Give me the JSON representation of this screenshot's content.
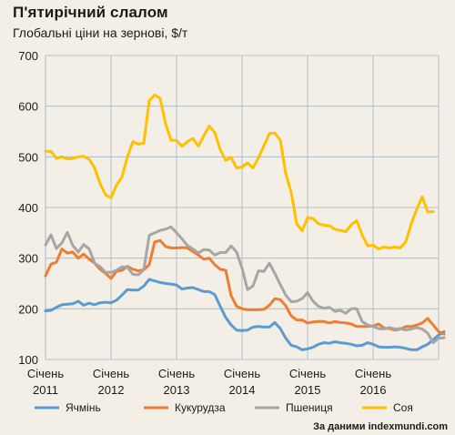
{
  "title": "П'ятирічний слалом",
  "subtitle": "Глобальні ціни на зернові, $/т",
  "source": "За даними indexmundi.com",
  "chart_data": {
    "type": "line",
    "xlabel": "",
    "ylabel": "",
    "ylim": [
      100,
      700
    ],
    "yticks": [
      "100",
      "200",
      "300",
      "400",
      "500",
      "600",
      "700"
    ],
    "xticks": [
      {
        "label": "Січень",
        "year": "2011",
        "x": 0
      },
      {
        "label": "Січень",
        "year": "2012",
        "x": 12
      },
      {
        "label": "Січень",
        "year": "2013",
        "x": 24
      },
      {
        "label": "Січень",
        "year": "2014",
        "x": 36
      },
      {
        "label": "Січень",
        "year": "2015",
        "x": 48
      },
      {
        "label": "Січень",
        "year": "2016",
        "x": 60
      }
    ],
    "grid": true,
    "legend_position": "bottom",
    "series": [
      {
        "name": "Ячмінь",
        "color": "#5b9bd5",
        "values": [
          196,
          197,
          203,
          208,
          209,
          210,
          215,
          207,
          211,
          208,
          212,
          213,
          212,
          217,
          227,
          238,
          237,
          237,
          245,
          258,
          255,
          252,
          250,
          249,
          247,
          239,
          241,
          242,
          238,
          234,
          234,
          228,
          205,
          183,
          168,
          158,
          157,
          158,
          164,
          165,
          164,
          164,
          173,
          161,
          142,
          128,
          125,
          119,
          121,
          124,
          130,
          133,
          132,
          135,
          133,
          132,
          130,
          127,
          128,
          133,
          130,
          125,
          124,
          124,
          125,
          124,
          122,
          119,
          119,
          125,
          130,
          139,
          148,
          155
        ]
      },
      {
        "name": "Кукурудза",
        "color": "#ed7d31",
        "values": [
          265,
          288,
          292,
          318,
          310,
          312,
          300,
          308,
          298,
          290,
          278,
          270,
          260,
          274,
          276,
          284,
          278,
          275,
          277,
          287,
          332,
          335,
          323,
          320,
          320,
          321,
          320,
          313,
          306,
          298,
          300,
          287,
          278,
          276,
          226,
          205,
          200,
          198,
          198,
          198,
          199,
          207,
          220,
          218,
          206,
          186,
          178,
          178,
          172,
          174,
          175,
          175,
          172,
          175,
          173,
          172,
          170,
          165,
          165,
          165,
          166,
          170,
          162,
          161,
          158,
          160,
          165,
          165,
          168,
          172,
          181,
          168,
          155,
          150
        ]
      },
      {
        "name": "Пшениця",
        "color": "#a6a6a6",
        "values": [
          326,
          346,
          319,
          330,
          351,
          325,
          312,
          327,
          318,
          290,
          283,
          272,
          272,
          276,
          283,
          282,
          268,
          267,
          277,
          345,
          350,
          355,
          357,
          362,
          350,
          338,
          325,
          318,
          310,
          317,
          316,
          306,
          311,
          311,
          324,
          312,
          280,
          238,
          245,
          275,
          274,
          290,
          270,
          248,
          227,
          214,
          215,
          220,
          232,
          215,
          205,
          201,
          203,
          195,
          197,
          191,
          200,
          200,
          175,
          168,
          165,
          161,
          160,
          163,
          160,
          161,
          158,
          160,
          163,
          160,
          152,
          133,
          142,
          143
        ]
      },
      {
        "name": "Соя",
        "color": "#ffc000",
        "values": [
          511,
          511,
          497,
          500,
          496,
          497,
          500,
          501,
          495,
          478,
          447,
          425,
          419,
          444,
          460,
          500,
          530,
          525,
          527,
          611,
          622,
          615,
          565,
          533,
          532,
          521,
          530,
          536,
          521,
          542,
          561,
          548,
          514,
          493,
          499,
          478,
          480,
          488,
          478,
          498,
          522,
          546,
          547,
          533,
          467,
          430,
          368,
          354,
          380,
          378,
          368,
          365,
          364,
          357,
          355,
          352,
          366,
          374,
          346,
          324,
          326,
          318,
          322,
          320,
          322,
          320,
          333,
          368,
          397,
          421,
          391,
          392
        ]
      }
    ]
  }
}
